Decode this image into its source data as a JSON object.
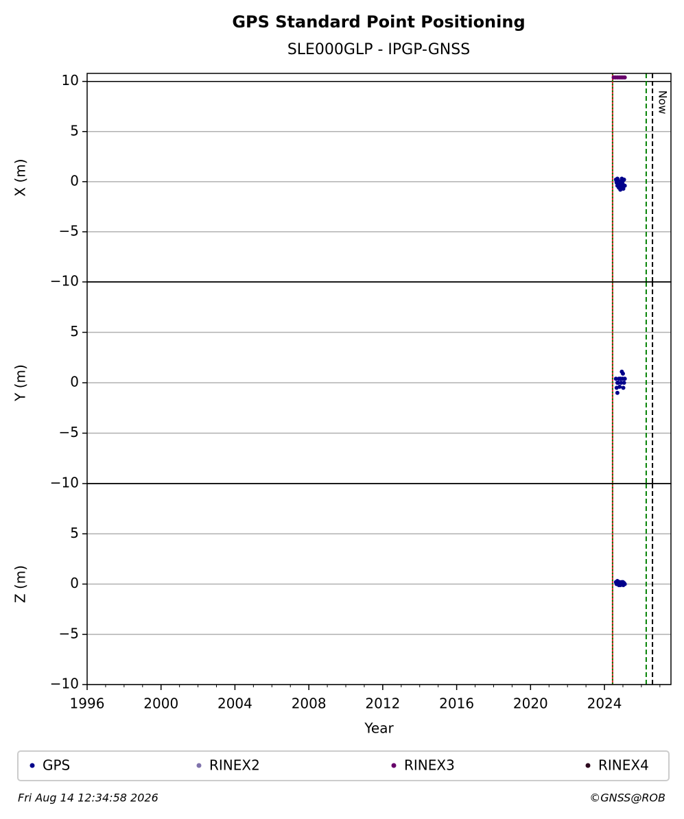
{
  "title": "GPS Standard Point Positioning",
  "subtitle": "SLE000GLP - IPGP-GNSS",
  "legend": [
    {
      "name": "GPS",
      "color": "#00008b"
    },
    {
      "name": "RINEX2",
      "color": "#8073ac"
    },
    {
      "name": "RINEX3",
      "color": "#67006a"
    },
    {
      "name": "RINEX4",
      "color": "#2d0a1e"
    }
  ],
  "footer_left": "Fri Aug 14 12:34:58 2026",
  "footer_right": "©GNSS@ROB",
  "chart_data": [
    {
      "type": "scatter",
      "ylabel": "X (m)",
      "xlim": [
        1996,
        2027.6
      ],
      "ylim": [
        -10,
        10.8
      ],
      "yticks": [
        {
          "value": -10,
          "label": "−10"
        },
        {
          "value": -5,
          "label": "−5"
        },
        0,
        5,
        10
      ],
      "grid": true,
      "hline": 10,
      "vlines": [
        {
          "x": 2024.44,
          "color": "#d62728",
          "style": "solid"
        },
        {
          "x": 2024.44,
          "color": "#008000",
          "style": "dotted"
        },
        {
          "x": 2026.26,
          "color": "#008000",
          "style": "dashed"
        },
        {
          "x": 2026.6,
          "color": "#000000",
          "style": "dashed",
          "label": "Now"
        }
      ],
      "series": [
        {
          "color": "#00008b",
          "x": [
            2024.62,
            2024.66,
            2024.7,
            2024.74,
            2024.78,
            2024.82,
            2024.86,
            2024.9,
            2024.94,
            2024.98,
            2025.02,
            2025.06,
            2025.1,
            2024.7,
            2024.86,
            2025.0
          ],
          "values": [
            0.2,
            -0.1,
            -0.4,
            0.1,
            -0.6,
            -0.3,
            0.0,
            -0.5,
            0.3,
            -0.2,
            -0.7,
            0.2,
            -0.4,
            0.3,
            -0.8,
            0.1
          ]
        },
        {
          "color": "#67006a",
          "x": [
            2024.5,
            2024.6,
            2024.7,
            2024.8,
            2024.9,
            2025.0,
            2025.1
          ],
          "values": [
            10.4,
            10.4,
            10.4,
            10.4,
            10.4,
            10.4,
            10.4
          ]
        }
      ]
    },
    {
      "type": "scatter",
      "ylabel": "Y (m)",
      "xlim": [
        1996,
        2027.6
      ],
      "ylim": [
        -10,
        10
      ],
      "yticks": [
        {
          "value": -10,
          "label": "−10"
        },
        {
          "value": -5,
          "label": "−5"
        },
        0,
        5
      ],
      "grid": true,
      "vlines": [
        {
          "x": 2024.44,
          "color": "#d62728",
          "style": "solid"
        },
        {
          "x": 2024.44,
          "color": "#008000",
          "style": "dotted"
        },
        {
          "x": 2026.26,
          "color": "#008000",
          "style": "dashed"
        },
        {
          "x": 2026.6,
          "color": "#000000",
          "style": "dashed"
        }
      ],
      "series": [
        {
          "color": "#00008b",
          "x": [
            2024.62,
            2024.66,
            2024.7,
            2024.74,
            2024.78,
            2024.82,
            2024.86,
            2024.9,
            2024.94,
            2024.98,
            2025.02,
            2025.06,
            2025.1,
            2024.7,
            2024.86,
            2025.0
          ],
          "values": [
            0.4,
            -0.5,
            -1.0,
            0.0,
            0.4,
            -0.4,
            0.4,
            0.0,
            1.1,
            0.4,
            -0.5,
            0.0,
            0.4,
            0.0,
            0.4,
            0.9
          ]
        }
      ]
    },
    {
      "type": "scatter",
      "ylabel": "Z (m)",
      "xlabel": "Year",
      "xlim": [
        1996,
        2027.6
      ],
      "ylim": [
        -10,
        10
      ],
      "yticks": [
        {
          "value": -10,
          "label": "−10"
        },
        {
          "value": -5,
          "label": "−5"
        },
        0,
        5
      ],
      "grid": true,
      "xticks": [
        1996,
        2000,
        2004,
        2008,
        2012,
        2016,
        2020,
        2024
      ],
      "vlines": [
        {
          "x": 2024.44,
          "color": "#d62728",
          "style": "solid"
        },
        {
          "x": 2024.44,
          "color": "#008000",
          "style": "dotted"
        },
        {
          "x": 2026.26,
          "color": "#008000",
          "style": "dashed"
        },
        {
          "x": 2026.6,
          "color": "#000000",
          "style": "dashed"
        }
      ],
      "series": [
        {
          "color": "#00008b",
          "x": [
            2024.62,
            2024.66,
            2024.7,
            2024.74,
            2024.78,
            2024.82,
            2024.86,
            2024.9,
            2024.94,
            2024.98,
            2025.02,
            2025.06,
            2025.1,
            2024.7,
            2024.86,
            2025.0
          ],
          "values": [
            0.2,
            0.0,
            0.3,
            0.1,
            -0.1,
            0.2,
            0.0,
            0.1,
            0.2,
            0.0,
            -0.1,
            0.1,
            0.0,
            0.3,
            -0.1,
            0.2
          ]
        }
      ]
    }
  ]
}
